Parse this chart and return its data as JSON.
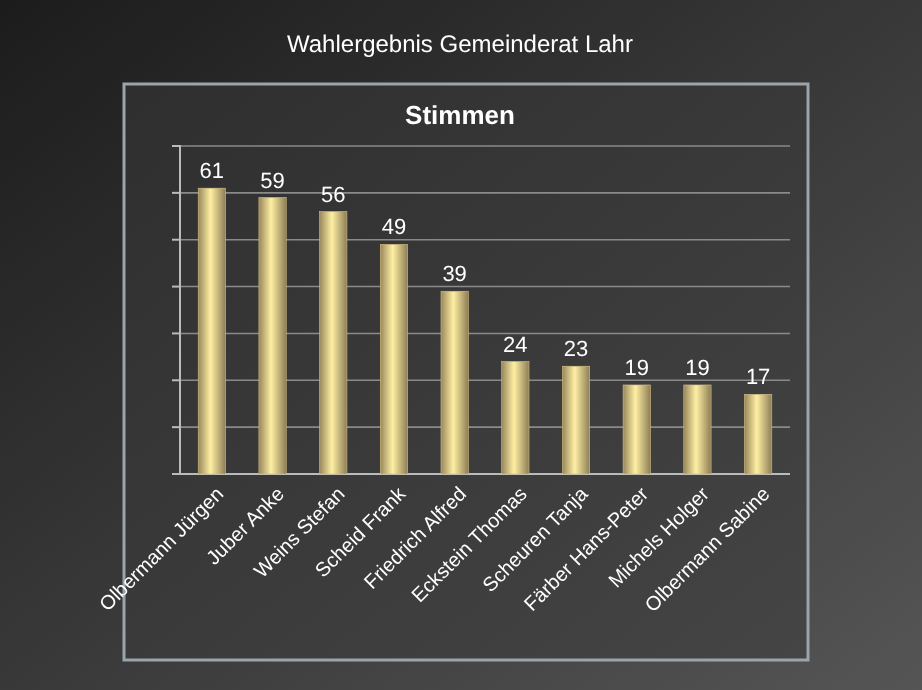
{
  "chart_data": {
    "type": "bar",
    "title": "Wahlergebnis Gemeinderat Lahr",
    "subtitle": "Stimmen",
    "categories": [
      "Olbermann Jürgen",
      "Juber Anke",
      "Weins Stefan",
      "Scheid Frank",
      "Friedrich Alfred",
      "Eckstein Thomas",
      "Scheuren Tanja",
      "Färber Hans-Peter",
      "Michels Holger",
      "Olbermann Sabine"
    ],
    "values": [
      61,
      59,
      56,
      49,
      39,
      24,
      23,
      19,
      19,
      17
    ],
    "color": "#d9c184",
    "ylim": [
      0,
      70
    ],
    "yticks": [
      0,
      10,
      20,
      30,
      40,
      50,
      60,
      70
    ],
    "tick_labels": "x",
    "grid": "y",
    "data_labels": true
  }
}
